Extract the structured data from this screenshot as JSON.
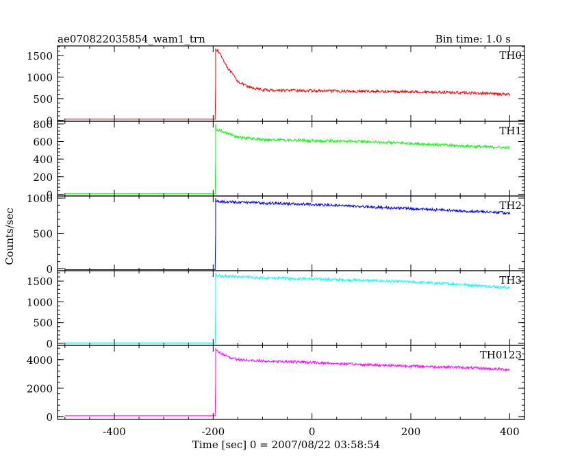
{
  "header": {
    "title": "ae070822035854_wam1_trn",
    "bin_time": "Bin time: 1.0 s"
  },
  "axes": {
    "ylabel": "Counts/sec",
    "xlabel": "Time [sec] 0 = 2007/08/22 03:58:54"
  },
  "chart_data": {
    "type": "line",
    "title": "ae070822035854_wam1_trn",
    "xlabel": "Time [sec] 0 = 2007/08/22 03:58:54",
    "ylabel": "Counts/sec",
    "xlim": [
      -515,
      430
    ],
    "xticks": [
      -400,
      -200,
      0,
      200,
      400
    ],
    "grid": false,
    "legend": "none",
    "series": [
      {
        "name": "TH0",
        "color": "#ff0000",
        "ylim": [
          -25,
          1720
        ],
        "yticks": [
          0,
          500,
          1000,
          1500
        ],
        "baseline": 25,
        "onset": -195,
        "peak": 1660,
        "x": [
          -500,
          -195,
          -194,
          -185,
          -170,
          -150,
          -130,
          -100,
          -50,
          0,
          100,
          200,
          300,
          400
        ],
        "y": [
          25,
          25,
          1650,
          1520,
          1200,
          900,
          770,
          700,
          690,
          680,
          670,
          660,
          640,
          600
        ]
      },
      {
        "name": "TH1",
        "color": "#00ff00",
        "ylim": [
          -20,
          830
        ],
        "yticks": [
          0,
          200,
          400,
          600,
          800
        ],
        "baseline": 5,
        "onset": -195,
        "peak": 800,
        "x": [
          -500,
          -195,
          -194,
          -185,
          -150,
          -100,
          0,
          100,
          200,
          300,
          400
        ],
        "y": [
          5,
          5,
          740,
          720,
          650,
          620,
          610,
          600,
          580,
          550,
          530
        ]
      },
      {
        "name": "TH2",
        "color": "#0000ff",
        "ylim": [
          -30,
          1030
        ],
        "yticks": [
          0,
          500,
          1000
        ],
        "baseline": -15,
        "onset": -195,
        "peak": 1000,
        "x": [
          -500,
          -195,
          -194,
          -185,
          -100,
          0,
          100,
          200,
          300,
          400
        ],
        "y": [
          -15,
          -15,
          960,
          950,
          930,
          910,
          880,
          850,
          820,
          790
        ]
      },
      {
        "name": "TH3",
        "color": "#00ffff",
        "ylim": [
          -50,
          1750
        ],
        "yticks": [
          0,
          500,
          1000,
          1500
        ],
        "baseline": 10,
        "onset": -195,
        "peak": 1700,
        "x": [
          -500,
          -195,
          -194,
          -185,
          -100,
          0,
          100,
          200,
          300,
          400
        ],
        "y": [
          10,
          10,
          1640,
          1620,
          1580,
          1550,
          1520,
          1480,
          1420,
          1340
        ]
      },
      {
        "name": "TH0123",
        "color": "#ff00ff",
        "ylim": [
          -200,
          5000
        ],
        "yticks": [
          0,
          2000,
          4000
        ],
        "baseline": 50,
        "onset": -195,
        "peak": 4800,
        "x": [
          -500,
          -195,
          -194,
          -185,
          -170,
          -150,
          -100,
          0,
          100,
          200,
          300,
          400
        ],
        "y": [
          50,
          50,
          4700,
          4450,
          4200,
          4000,
          3900,
          3800,
          3650,
          3550,
          3450,
          3300
        ]
      }
    ]
  }
}
